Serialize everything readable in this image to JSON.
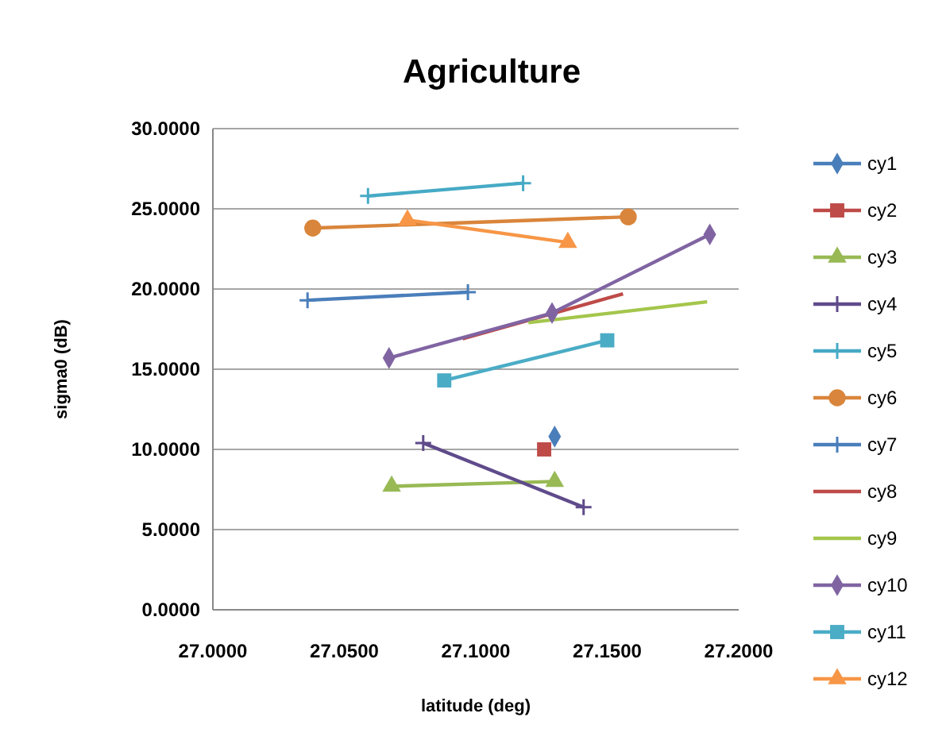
{
  "chart_data": {
    "type": "line",
    "title": "Agriculture",
    "xlabel": "latitude (deg)",
    "ylabel": "sigma0 (dB)",
    "xlim": [
      27,
      27.2
    ],
    "xticks": [
      {
        "value": 27,
        "label": "27.0000"
      },
      {
        "value": 27.05,
        "label": "27.0500"
      },
      {
        "value": 27.1,
        "label": "27.1000"
      },
      {
        "value": 27.15,
        "label": "27.1500"
      },
      {
        "value": 27.2,
        "label": "27.2000"
      }
    ],
    "ylim": [
      0,
      30
    ],
    "yticks": [
      {
        "value": 0,
        "label": "0.0000"
      },
      {
        "value": 5,
        "label": "5.0000"
      },
      {
        "value": 10,
        "label": "10.0000"
      },
      {
        "value": 15,
        "label": "15.0000"
      },
      {
        "value": 20,
        "label": "20.0000"
      },
      {
        "value": 25,
        "label": "25.0000"
      },
      {
        "value": 30,
        "label": "30.0000"
      }
    ],
    "grid": "y",
    "legend": "right",
    "line_style": "solid",
    "series": [
      {
        "name": "cy1",
        "color": "#4a7ebb",
        "marker": "diamond",
        "x": [
          27.13
        ],
        "values": [
          10.8
        ]
      },
      {
        "name": "cy2",
        "color": "#be4b48",
        "marker": "square",
        "x": [
          27.126
        ],
        "values": [
          10.0
        ]
      },
      {
        "name": "cy3",
        "color": "#98b954",
        "marker": "triangle",
        "x": [
          27.068,
          27.13
        ],
        "values": [
          7.7,
          8.0
        ]
      },
      {
        "name": "cy4",
        "color": "#5f4b8b",
        "marker": "cross",
        "x": [
          27.08,
          27.141
        ],
        "values": [
          10.4,
          6.4
        ]
      },
      {
        "name": "cy5",
        "color": "#46aac5",
        "marker": "cross",
        "x": [
          27.059,
          27.118
        ],
        "values": [
          25.8,
          26.6
        ]
      },
      {
        "name": "cy6",
        "color": "#d9853b",
        "marker": "circle",
        "x": [
          27.038,
          27.158
        ],
        "values": [
          23.8,
          24.5
        ]
      },
      {
        "name": "cy7",
        "color": "#4a7ebb",
        "marker": "cross",
        "x": [
          27.036,
          27.097
        ],
        "values": [
          19.3,
          19.8
        ]
      },
      {
        "name": "cy8",
        "color": "#be4b48",
        "marker": "none",
        "x": [
          27.095,
          27.156
        ],
        "values": [
          16.9,
          19.7
        ]
      },
      {
        "name": "cy9",
        "color": "#a4c64c",
        "marker": "none",
        "x": [
          27.12,
          27.188
        ],
        "values": [
          17.9,
          19.2
        ]
      },
      {
        "name": "cy10",
        "color": "#8064a2",
        "marker": "diamond",
        "x": [
          27.067,
          27.129,
          27.189
        ],
        "values": [
          15.7,
          18.5,
          23.4
        ]
      },
      {
        "name": "cy11",
        "color": "#4bacc6",
        "marker": "square",
        "x": [
          27.088,
          27.15
        ],
        "values": [
          14.3,
          16.8
        ]
      },
      {
        "name": "cy12",
        "color": "#f79646",
        "marker": "triangle",
        "x": [
          27.074,
          27.135
        ],
        "values": [
          24.3,
          22.9
        ]
      }
    ]
  }
}
